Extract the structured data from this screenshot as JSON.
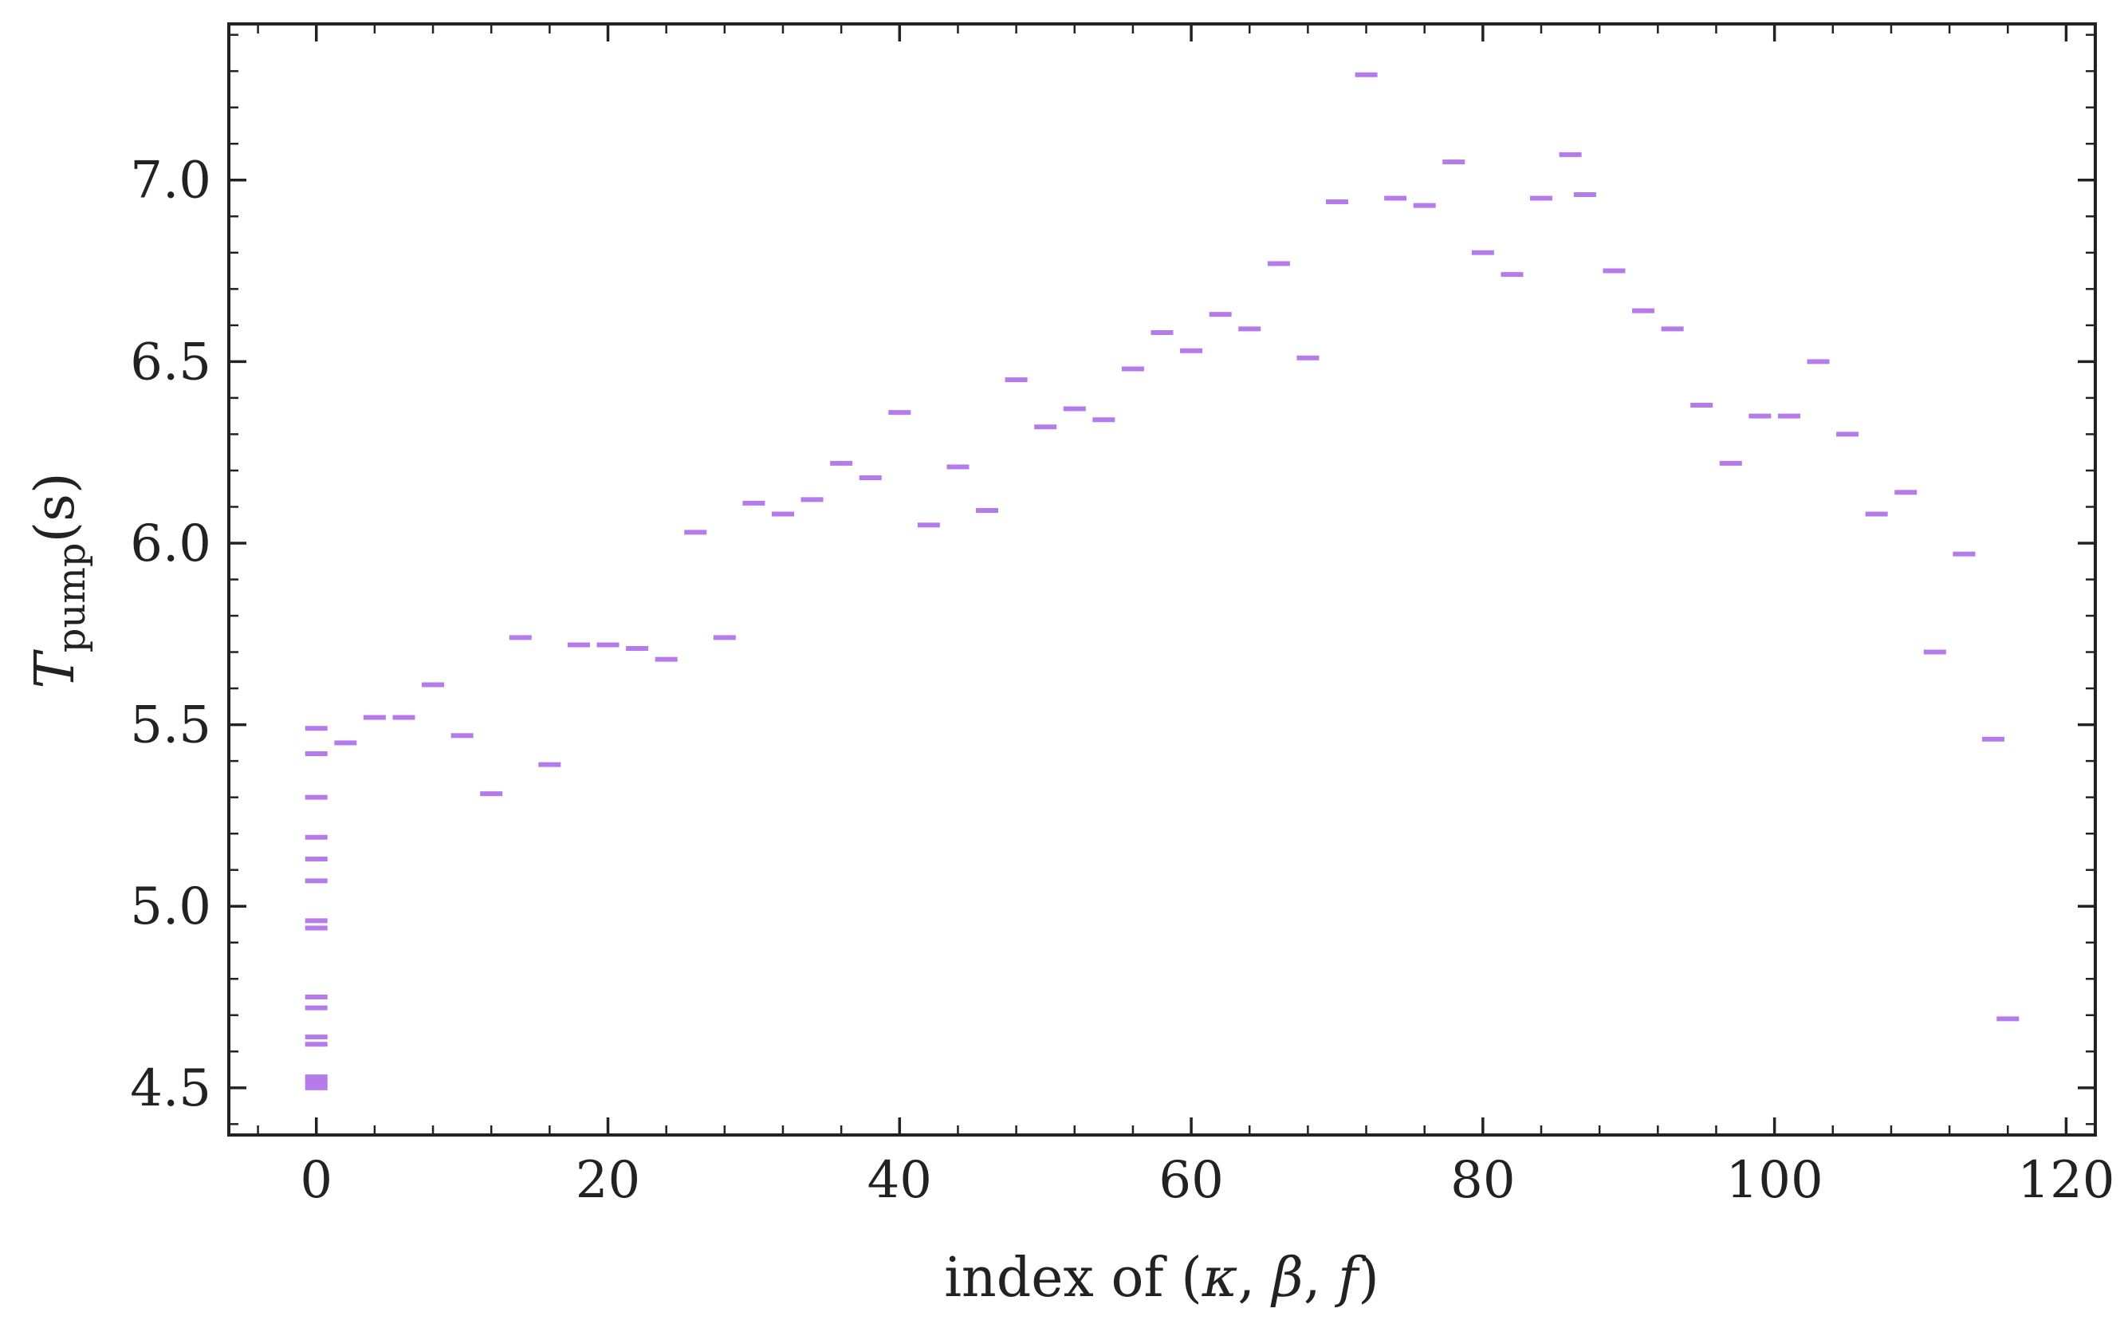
{
  "chart_data": {
    "type": "scatter",
    "marker": "hline",
    "xlabel_text": "index of (",
    "xlabel_symbols": [
      "κ",
      "β",
      "f"
    ],
    "xlabel_close": ")",
    "ylabel_main": "T",
    "ylabel_sub": "pump",
    "ylabel_unit": "(s)",
    "xlim": [
      -6,
      122
    ],
    "ylim": [
      4.37,
      7.43
    ],
    "xticks": [
      0,
      20,
      40,
      60,
      80,
      100,
      120
    ],
    "xtick_labels": [
      "0",
      "20",
      "40",
      "60",
      "80",
      "100",
      "120"
    ],
    "yticks": [
      4.5,
      5.0,
      5.5,
      6.0,
      6.5,
      7.0
    ],
    "ytick_labels": [
      "4.5",
      "5.0",
      "5.5",
      "6.0",
      "6.5",
      "7.0"
    ],
    "color": "#b57bea",
    "series": [
      {
        "x": [
          0,
          0,
          0,
          0,
          0,
          0,
          0,
          0,
          0,
          0,
          0,
          0,
          0,
          0,
          0,
          0,
          2,
          4,
          6,
          8,
          10,
          12,
          14,
          16,
          18,
          20,
          22,
          24,
          26,
          28,
          30,
          32,
          34,
          36,
          38,
          40,
          42,
          44,
          46,
          48,
          50,
          52,
          54,
          56,
          58,
          60,
          62,
          64,
          66,
          68,
          70,
          72,
          74,
          76,
          78,
          80,
          82,
          84,
          86,
          87,
          89,
          91,
          93,
          95,
          97,
          99,
          101,
          103,
          105,
          107,
          109,
          111,
          113,
          115,
          116
        ],
        "y": [
          5.49,
          5.42,
          5.3,
          5.19,
          5.13,
          5.07,
          4.96,
          4.94,
          4.75,
          4.72,
          4.64,
          4.62,
          4.53,
          4.51,
          4.5,
          4.52,
          5.45,
          5.52,
          5.52,
          5.61,
          5.47,
          5.31,
          5.74,
          5.39,
          5.72,
          5.72,
          5.71,
          5.68,
          6.03,
          5.74,
          6.11,
          6.08,
          6.12,
          6.22,
          6.18,
          6.36,
          6.05,
          6.21,
          6.09,
          6.45,
          6.32,
          6.37,
          6.34,
          6.48,
          6.58,
          6.53,
          6.63,
          6.59,
          6.77,
          6.51,
          6.94,
          7.29,
          6.95,
          6.93,
          7.05,
          6.8,
          6.74,
          6.95,
          7.07,
          6.96,
          6.75,
          6.64,
          6.59,
          6.38,
          6.22,
          6.35,
          6.35,
          6.5,
          6.3,
          6.08,
          6.14,
          5.7,
          5.97,
          5.46,
          4.69
        ]
      }
    ]
  }
}
